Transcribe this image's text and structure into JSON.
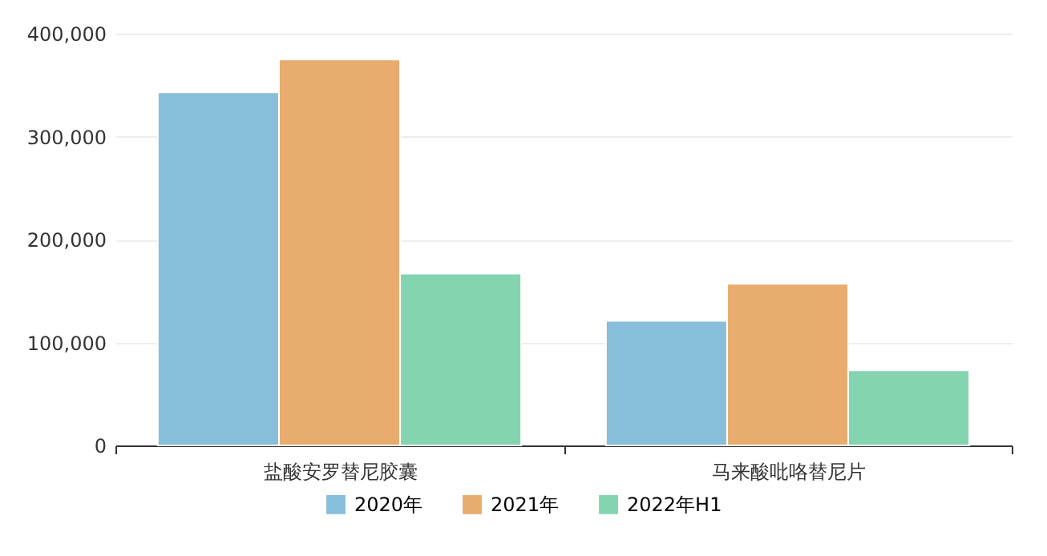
{
  "chart_data": {
    "type": "bar",
    "categories": [
      "盐酸安罗替尼胶囊",
      "马来酸吡咯替尼片"
    ],
    "series": [
      {
        "name": "2020年",
        "color": "#86bedb",
        "values": [
          343000,
          121000
        ]
      },
      {
        "name": "2021年",
        "color": "#e8ac6e",
        "values": [
          375000,
          157000
        ]
      },
      {
        "name": "2022年H1",
        "color": "#84d4b0",
        "values": [
          167000,
          73000
        ]
      }
    ],
    "ylim": [
      0,
      400000
    ],
    "yticks": [
      0,
      {
        "value": 100000,
        "label": "100,000"
      },
      {
        "value": 200000,
        "label": "200,000"
      },
      {
        "value": 300000,
        "label": "300,000"
      },
      {
        "value": 400000,
        "label": "400,000"
      }
    ],
    "grid": "y",
    "legend": "bottom"
  }
}
